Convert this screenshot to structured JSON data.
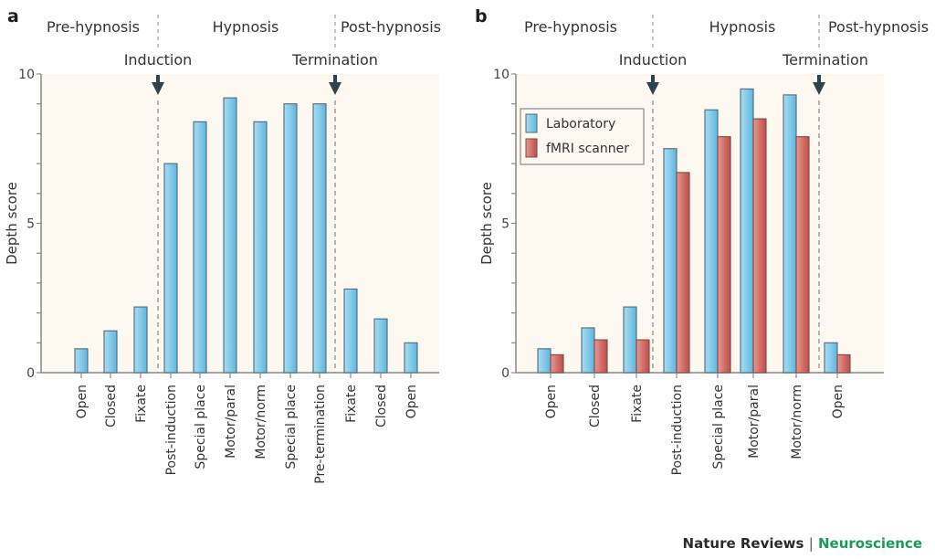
{
  "chart_data": [
    {
      "panel": "a",
      "type": "bar",
      "title": "",
      "ylabel": "Depth score",
      "xlabel": "",
      "ylim": [
        0,
        10
      ],
      "yticks": [
        0,
        5,
        10
      ],
      "minor_yticks_step": 1,
      "grid": false,
      "phases": [
        "Pre-hypnosis",
        "Hypnosis",
        "Post-hypnosis"
      ],
      "events": [
        {
          "label": "Induction",
          "after_index": 2
        },
        {
          "label": "Termination",
          "after_index": 8
        }
      ],
      "categories": [
        "Open",
        "Closed",
        "Fixate",
        "Post-induction",
        "Special place",
        "Motor/paral",
        "Motor/norm",
        "Special place",
        "Pre-termination",
        "Fixate",
        "Closed",
        "Open"
      ],
      "series": [
        {
          "name": "Laboratory",
          "color": "#7cc7e6",
          "values": [
            0.8,
            1.4,
            2.2,
            7.0,
            8.4,
            9.2,
            8.4,
            9.0,
            9.0,
            2.8,
            1.8,
            1.0
          ]
        }
      ]
    },
    {
      "panel": "b",
      "type": "bar",
      "title": "",
      "ylabel": "Depth score",
      "xlabel": "",
      "ylim": [
        0,
        10
      ],
      "yticks": [
        0,
        5,
        10
      ],
      "minor_yticks_step": 1,
      "grid": false,
      "legend": "top-left",
      "phases": [
        "Pre-hypnosis",
        "Hypnosis",
        "Post-hypnosis"
      ],
      "events": [
        {
          "label": "Induction",
          "after_index": 2
        },
        {
          "label": "Termination",
          "after_index": 6
        }
      ],
      "categories": [
        "Open",
        "Closed",
        "Fixate",
        "Post-induction",
        "Special place",
        "Motor/paral",
        "Motor/norm",
        "Open"
      ],
      "series": [
        {
          "name": "Laboratory",
          "color": "#7cc7e6",
          "values": [
            0.8,
            1.5,
            2.2,
            7.5,
            8.8,
            9.5,
            9.3,
            1.0
          ]
        },
        {
          "name": "fMRI scanner",
          "color": "#d46a60",
          "values": [
            0.6,
            1.1,
            1.1,
            6.7,
            7.9,
            8.5,
            7.9,
            0.6
          ]
        }
      ]
    }
  ],
  "footer": {
    "publisher": "Nature Reviews",
    "separator": "|",
    "journal": "Neuroscience"
  }
}
